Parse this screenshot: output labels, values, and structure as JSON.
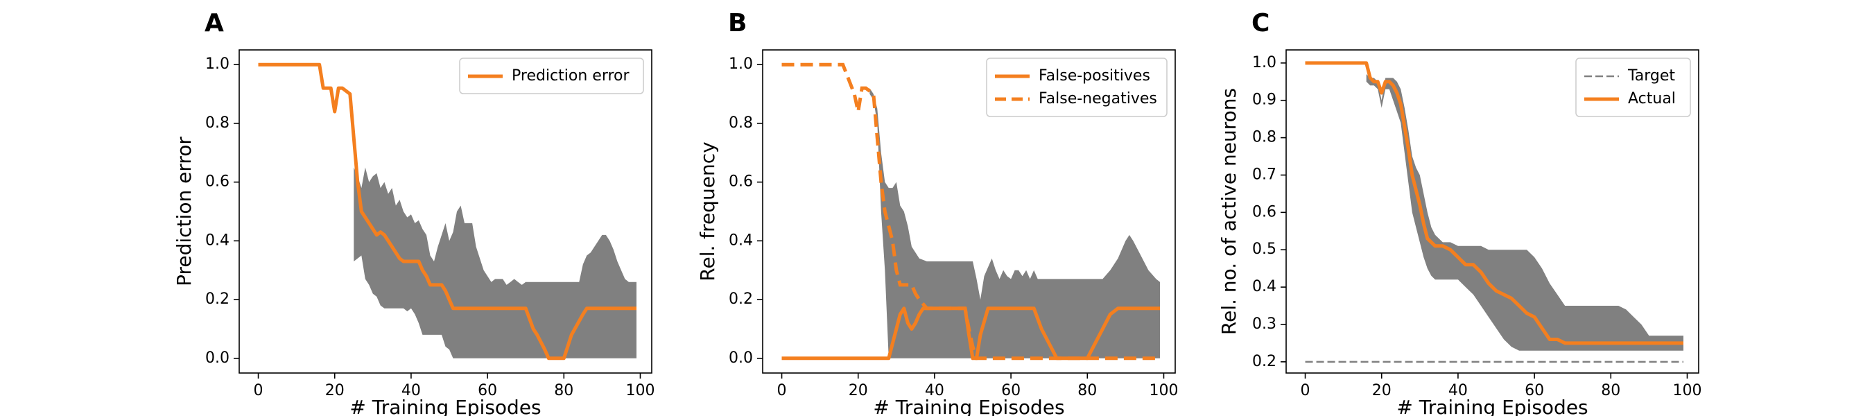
{
  "colors": {
    "line": "#f47f1f",
    "band": "#808080",
    "target": "#808080",
    "frame": "#000000"
  },
  "chart_data": [
    {
      "type": "line",
      "panel_letter": "A",
      "xlabel": "# Training Episodes",
      "ylabel": "Prediction error",
      "xlim": [
        -5,
        103
      ],
      "ylim": [
        -0.05,
        1.05
      ],
      "xticks": [
        0,
        20,
        40,
        60,
        80,
        100
      ],
      "yticks": [
        0.0,
        0.2,
        0.4,
        0.6,
        0.8,
        1.0
      ],
      "ytick_labels": [
        "0.0",
        "0.2",
        "0.4",
        "0.6",
        "0.8",
        "1.0"
      ],
      "legend": {
        "placement": "upper right",
        "entries": [
          {
            "label": "Prediction error",
            "style": "solid"
          }
        ]
      },
      "band": {
        "x": [
          25,
          26,
          27,
          28,
          29,
          30,
          31,
          32,
          33,
          34,
          35,
          36,
          37,
          38,
          39,
          40,
          41,
          42,
          43,
          44,
          45,
          46,
          47,
          48,
          49,
          50,
          51,
          52,
          53,
          54,
          55,
          56,
          57,
          58,
          59,
          60,
          61,
          62,
          63,
          64,
          65,
          66,
          67,
          68,
          69,
          70,
          71,
          72,
          73,
          74,
          75,
          76,
          77,
          78,
          79,
          80,
          81,
          82,
          83,
          84,
          85,
          86,
          87,
          88,
          89,
          90,
          91,
          92,
          93,
          94,
          95,
          96,
          97,
          98,
          99
        ],
        "upper": [
          0.65,
          0.62,
          0.58,
          0.65,
          0.6,
          0.62,
          0.63,
          0.58,
          0.6,
          0.56,
          0.58,
          0.52,
          0.54,
          0.5,
          0.48,
          0.49,
          0.46,
          0.47,
          0.44,
          0.42,
          0.35,
          0.33,
          0.38,
          0.42,
          0.46,
          0.4,
          0.43,
          0.5,
          0.52,
          0.46,
          0.46,
          0.46,
          0.38,
          0.34,
          0.3,
          0.28,
          0.26,
          0.27,
          0.27,
          0.27,
          0.25,
          0.26,
          0.27,
          0.26,
          0.25,
          0.26,
          0.26,
          0.26,
          0.26,
          0.26,
          0.26,
          0.26,
          0.26,
          0.26,
          0.26,
          0.26,
          0.26,
          0.26,
          0.26,
          0.26,
          0.32,
          0.35,
          0.36,
          0.38,
          0.4,
          0.42,
          0.42,
          0.4,
          0.37,
          0.33,
          0.3,
          0.27,
          0.26,
          0.26,
          0.26
        ],
        "lower": [
          0.33,
          0.34,
          0.35,
          0.27,
          0.25,
          0.22,
          0.21,
          0.18,
          0.17,
          0.17,
          0.17,
          0.17,
          0.17,
          0.17,
          0.16,
          0.17,
          0.15,
          0.12,
          0.08,
          0.08,
          0.08,
          0.08,
          0.08,
          0.08,
          0.04,
          0.03,
          0.0,
          0.0,
          0.0,
          0.0,
          0.0,
          0.0,
          0.0,
          0.0,
          0.0,
          0.0,
          0.0,
          0.0,
          0.0,
          0.0,
          0.0,
          0.0,
          0.0,
          0.0,
          0.0,
          0.0,
          0.0,
          0.0,
          0.0,
          0.0,
          0.0,
          0.0,
          0.0,
          0.0,
          0.0,
          0.0,
          0.0,
          0.0,
          0.0,
          0.0,
          0.0,
          0.0,
          0.0,
          0.0,
          0.0,
          0.0,
          0.0,
          0.0,
          0.0,
          0.0,
          0.0,
          0.0,
          0.0,
          0.0,
          0.0
        ]
      },
      "series": [
        {
          "name": "Prediction error",
          "style": "solid",
          "x": [
            0,
            16,
            17,
            19,
            20,
            21,
            22,
            24,
            25,
            26,
            27,
            30,
            31,
            32,
            33,
            35,
            36,
            37,
            38,
            39,
            40,
            41,
            42,
            43,
            44,
            45,
            46,
            48,
            49,
            50,
            51,
            52,
            53,
            54,
            55,
            60,
            65,
            68,
            70,
            72,
            73,
            75,
            76,
            77,
            79,
            80,
            82,
            85,
            86,
            87,
            90,
            95,
            99
          ],
          "y": [
            1.0,
            1.0,
            0.92,
            0.92,
            0.84,
            0.92,
            0.92,
            0.9,
            0.75,
            0.6,
            0.5,
            0.44,
            0.42,
            0.43,
            0.42,
            0.38,
            0.36,
            0.34,
            0.33,
            0.33,
            0.33,
            0.33,
            0.33,
            0.3,
            0.28,
            0.25,
            0.25,
            0.25,
            0.23,
            0.2,
            0.17,
            0.17,
            0.17,
            0.17,
            0.17,
            0.17,
            0.17,
            0.17,
            0.17,
            0.1,
            0.08,
            0.03,
            0.0,
            0.0,
            0.0,
            0.0,
            0.08,
            0.15,
            0.17,
            0.17,
            0.17,
            0.17,
            0.17
          ]
        }
      ]
    },
    {
      "type": "line",
      "panel_letter": "B",
      "xlabel": "# Training Episodes",
      "ylabel": "Rel. frequency",
      "xlim": [
        -5,
        103
      ],
      "ylim": [
        -0.05,
        1.05
      ],
      "xticks": [
        0,
        20,
        40,
        60,
        80,
        100
      ],
      "yticks": [
        0.0,
        0.2,
        0.4,
        0.6,
        0.8,
        1.0
      ],
      "ytick_labels": [
        "0.0",
        "0.2",
        "0.4",
        "0.6",
        "0.8",
        "1.0"
      ],
      "legend": {
        "placement": "upper right",
        "entries": [
          {
            "label": "False-positives",
            "style": "solid"
          },
          {
            "label": "False-negatives",
            "style": "dashed"
          }
        ]
      },
      "band": {
        "x": [
          23,
          24,
          25,
          26,
          27,
          28,
          29,
          30,
          31,
          32,
          33,
          34,
          36,
          38,
          40,
          42,
          44,
          46,
          48,
          50,
          51,
          52,
          53,
          54,
          55,
          56,
          57,
          58,
          59,
          60,
          61,
          62,
          63,
          64,
          65,
          66,
          67,
          68,
          69,
          70,
          72,
          74,
          76,
          78,
          80,
          82,
          84,
          86,
          88,
          90,
          91,
          92,
          94,
          96,
          98,
          99
        ],
        "upper": [
          0.92,
          0.9,
          0.85,
          0.7,
          0.6,
          0.58,
          0.58,
          0.6,
          0.52,
          0.5,
          0.45,
          0.38,
          0.34,
          0.33,
          0.33,
          0.33,
          0.33,
          0.33,
          0.33,
          0.33,
          0.27,
          0.2,
          0.28,
          0.31,
          0.34,
          0.3,
          0.27,
          0.3,
          0.28,
          0.27,
          0.3,
          0.3,
          0.28,
          0.3,
          0.27,
          0.3,
          0.27,
          0.27,
          0.27,
          0.27,
          0.27,
          0.27,
          0.27,
          0.27,
          0.27,
          0.27,
          0.27,
          0.3,
          0.34,
          0.4,
          0.42,
          0.4,
          0.35,
          0.3,
          0.27,
          0.26
        ],
        "lower": [
          0.9,
          0.88,
          0.8,
          0.5,
          0.3,
          0.0,
          0.0,
          0.0,
          0.0,
          0.0,
          0.0,
          0.0,
          0.0,
          0.0,
          0.0,
          0.0,
          0.0,
          0.0,
          0.0,
          0.0,
          0.0,
          0.0,
          0.0,
          0.0,
          0.0,
          0.0,
          0.0,
          0.0,
          0.0,
          0.0,
          0.0,
          0.0,
          0.0,
          0.0,
          0.0,
          0.0,
          0.0,
          0.0,
          0.0,
          0.0,
          0.0,
          0.0,
          0.0,
          0.0,
          0.0,
          0.0,
          0.0,
          0.0,
          0.0,
          0.0,
          0.0,
          0.0,
          0.0,
          0.0,
          0.0,
          0.0
        ]
      },
      "series": [
        {
          "name": "False-positives",
          "style": "solid",
          "x": [
            0,
            27,
            28,
            29,
            30,
            31,
            32,
            33,
            34,
            35,
            36,
            37,
            38,
            40,
            42,
            44,
            46,
            48,
            49,
            50,
            51,
            52,
            54,
            56,
            58,
            60,
            62,
            64,
            66,
            68,
            70,
            72,
            74,
            76,
            78,
            80,
            82,
            84,
            86,
            88,
            90,
            95,
            99
          ],
          "y": [
            0.0,
            0.0,
            0.0,
            0.05,
            0.1,
            0.15,
            0.17,
            0.12,
            0.1,
            0.12,
            0.15,
            0.17,
            0.17,
            0.17,
            0.17,
            0.17,
            0.17,
            0.17,
            0.08,
            0.0,
            0.0,
            0.08,
            0.17,
            0.17,
            0.17,
            0.17,
            0.17,
            0.17,
            0.17,
            0.1,
            0.05,
            0.0,
            0.0,
            0.0,
            0.0,
            0.0,
            0.05,
            0.1,
            0.15,
            0.17,
            0.17,
            0.17,
            0.17
          ]
        },
        {
          "name": "False-negatives",
          "style": "dashed",
          "x": [
            0,
            16,
            19,
            20,
            21,
            22,
            24,
            25,
            26,
            27,
            28,
            29,
            30,
            31,
            32,
            33,
            34,
            35,
            36,
            38,
            40,
            42,
            44,
            46,
            48,
            49,
            50,
            51,
            52,
            55,
            60,
            65,
            70,
            80,
            90,
            99
          ],
          "y": [
            1.0,
            1.0,
            0.9,
            0.84,
            0.92,
            0.92,
            0.9,
            0.75,
            0.6,
            0.5,
            0.45,
            0.4,
            0.3,
            0.25,
            0.25,
            0.25,
            0.25,
            0.22,
            0.2,
            0.17,
            0.17,
            0.17,
            0.17,
            0.17,
            0.17,
            0.1,
            0.04,
            0.0,
            0.0,
            0.0,
            0.0,
            0.0,
            0.0,
            0.0,
            0.0,
            0.0
          ]
        }
      ]
    },
    {
      "type": "line",
      "panel_letter": "C",
      "xlabel": "# Training Episodes",
      "ylabel": "Rel. no. of active neurons",
      "xlim": [
        -5,
        103
      ],
      "ylim": [
        0.17,
        1.035
      ],
      "xticks": [
        0,
        20,
        40,
        60,
        80,
        100
      ],
      "yticks": [
        0.2,
        0.3,
        0.4,
        0.5,
        0.6,
        0.7,
        0.8,
        0.9,
        1.0
      ],
      "ytick_labels": [
        "0.2",
        "0.3",
        "0.4",
        "0.5",
        "0.6",
        "0.7",
        "0.8",
        "0.9",
        "1.0"
      ],
      "legend": {
        "placement": "upper right",
        "entries": [
          {
            "label": "Target",
            "style": "dashed"
          },
          {
            "label": "Actual",
            "style": "solid"
          }
        ]
      },
      "target": {
        "name": "Target",
        "y": 0.2,
        "x": [
          0,
          99
        ]
      },
      "band": {
        "x": [
          16,
          17,
          18,
          19,
          20,
          21,
          22,
          23,
          24,
          25,
          26,
          27,
          28,
          29,
          30,
          31,
          32,
          33,
          34,
          35,
          36,
          38,
          40,
          42,
          44,
          46,
          48,
          50,
          52,
          54,
          56,
          58,
          60,
          62,
          64,
          66,
          68,
          70,
          72,
          74,
          76,
          78,
          80,
          82,
          84,
          86,
          88,
          90,
          92,
          94,
          96,
          98,
          99
        ],
        "upper": [
          0.97,
          0.96,
          0.96,
          0.95,
          0.9,
          0.96,
          0.96,
          0.96,
          0.95,
          0.93,
          0.88,
          0.82,
          0.75,
          0.72,
          0.7,
          0.65,
          0.6,
          0.56,
          0.54,
          0.53,
          0.52,
          0.52,
          0.51,
          0.51,
          0.51,
          0.51,
          0.5,
          0.5,
          0.5,
          0.5,
          0.5,
          0.5,
          0.48,
          0.45,
          0.41,
          0.38,
          0.35,
          0.35,
          0.35,
          0.35,
          0.35,
          0.35,
          0.35,
          0.35,
          0.34,
          0.32,
          0.3,
          0.27,
          0.27,
          0.27,
          0.27,
          0.27,
          0.27
        ],
        "lower": [
          0.95,
          0.94,
          0.94,
          0.93,
          0.88,
          0.93,
          0.93,
          0.9,
          0.87,
          0.84,
          0.76,
          0.68,
          0.6,
          0.56,
          0.52,
          0.48,
          0.45,
          0.43,
          0.42,
          0.42,
          0.42,
          0.42,
          0.42,
          0.4,
          0.38,
          0.35,
          0.32,
          0.29,
          0.26,
          0.24,
          0.23,
          0.23,
          0.23,
          0.23,
          0.23,
          0.23,
          0.23,
          0.23,
          0.23,
          0.23,
          0.23,
          0.23,
          0.23,
          0.23,
          0.23,
          0.23,
          0.23,
          0.23,
          0.23,
          0.23,
          0.23,
          0.23,
          0.23
        ]
      },
      "series": [
        {
          "name": "Actual",
          "style": "solid",
          "x": [
            0,
            16,
            17,
            18,
            19,
            20,
            21,
            22,
            23,
            24,
            25,
            26,
            27,
            28,
            29,
            30,
            31,
            32,
            33,
            34,
            35,
            36,
            38,
            40,
            42,
            44,
            46,
            48,
            50,
            52,
            54,
            56,
            58,
            60,
            62,
            64,
            66,
            68,
            70,
            72,
            74,
            76,
            80,
            85,
            90,
            95,
            99
          ],
          "y": [
            1.0,
            1.0,
            0.96,
            0.95,
            0.95,
            0.92,
            0.95,
            0.95,
            0.94,
            0.92,
            0.89,
            0.83,
            0.77,
            0.7,
            0.66,
            0.62,
            0.57,
            0.53,
            0.52,
            0.51,
            0.51,
            0.51,
            0.5,
            0.48,
            0.46,
            0.46,
            0.44,
            0.41,
            0.39,
            0.38,
            0.37,
            0.35,
            0.33,
            0.32,
            0.29,
            0.26,
            0.26,
            0.25,
            0.25,
            0.25,
            0.25,
            0.25,
            0.25,
            0.25,
            0.25,
            0.25,
            0.25
          ]
        }
      ]
    }
  ]
}
